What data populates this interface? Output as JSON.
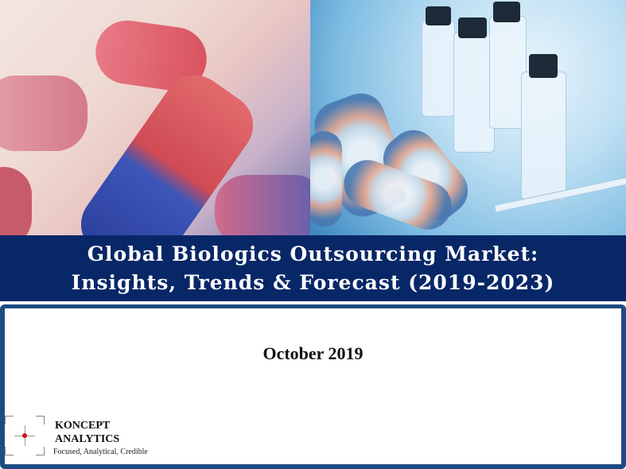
{
  "title": {
    "line1": "Global Biologics Outsourcing Market:",
    "line2": "Insights, Trends & Forecast (2019-2023)"
  },
  "date": "October 2019",
  "logo": {
    "name_line1": "KONCEPT",
    "name_line2": "ANALYTICS",
    "tagline": "Focused, Analytical, Credible"
  },
  "colors": {
    "banner": "#082767",
    "frame": "#1e4b82",
    "logo_dot": "#d0121b"
  }
}
